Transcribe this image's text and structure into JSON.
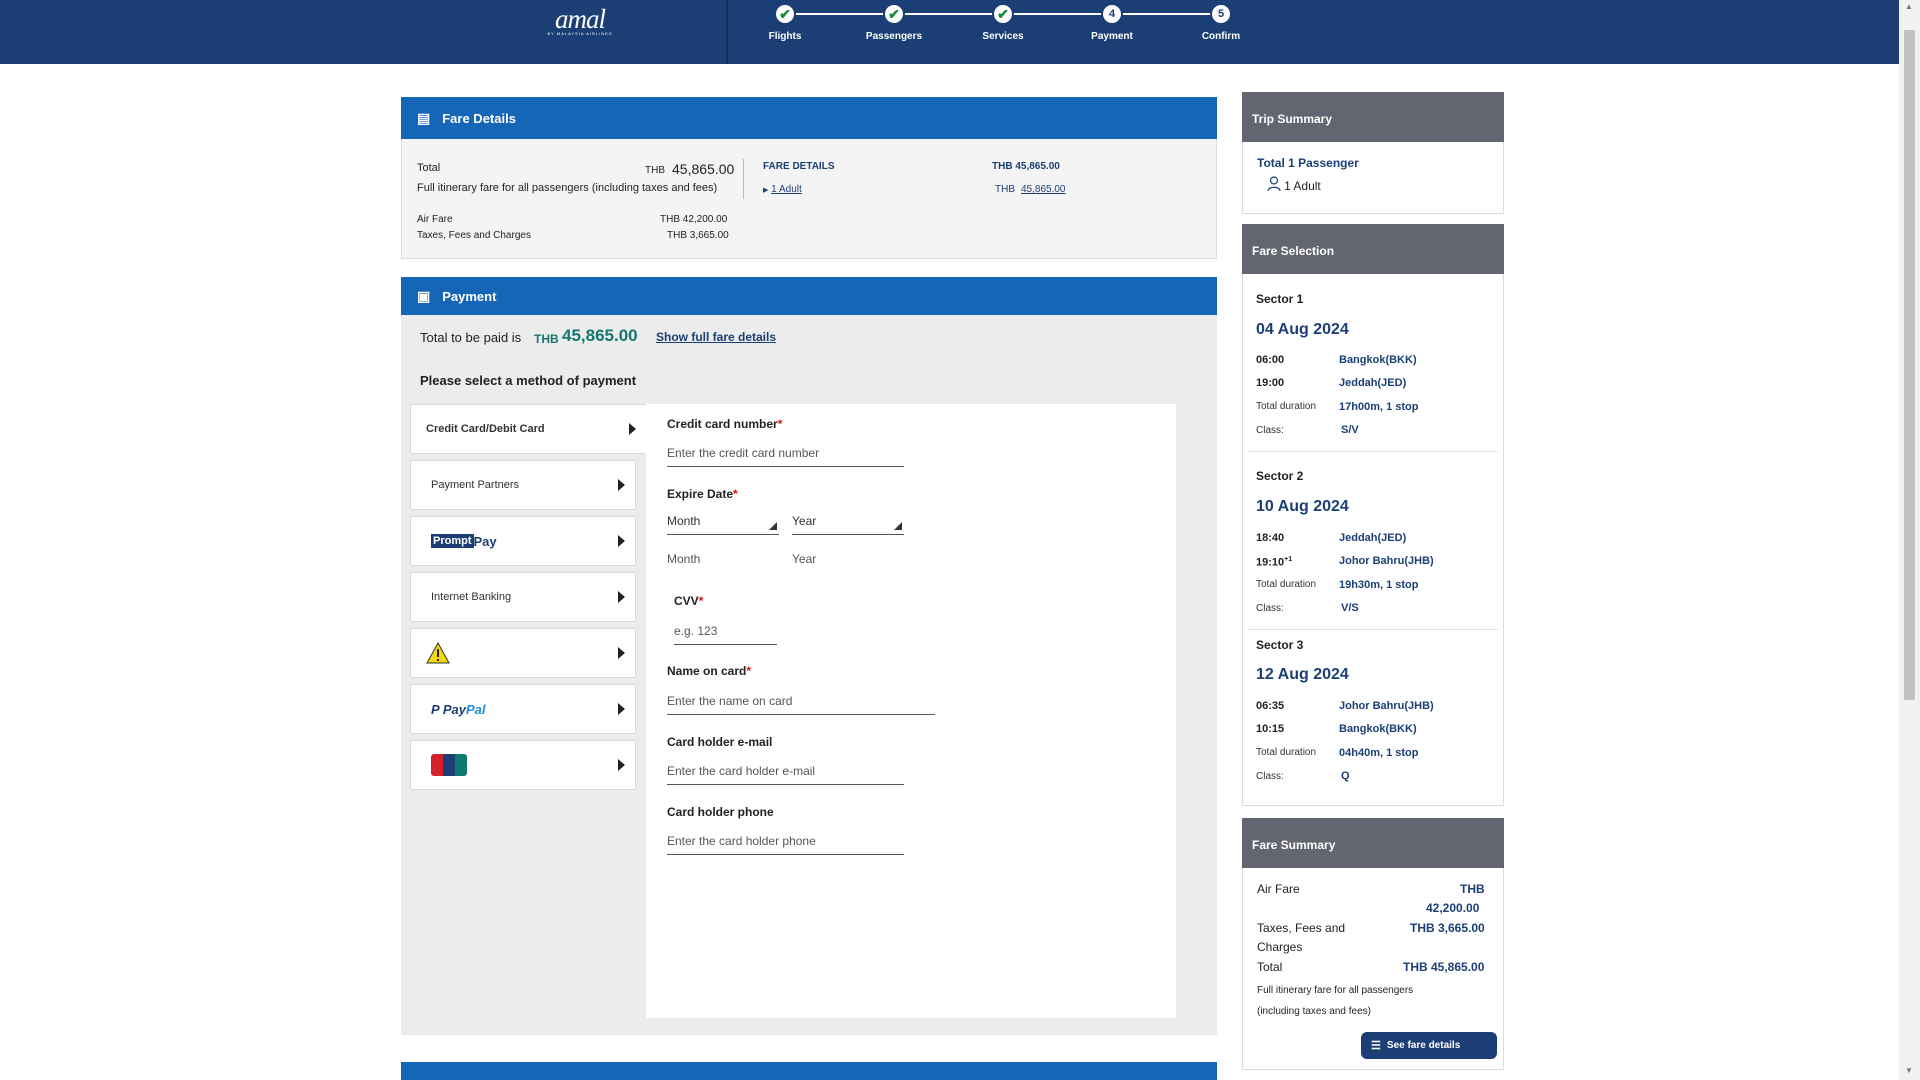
{
  "brand": {
    "logo_text": "amal",
    "logo_sub": "BY MALAYSIA AIRLINES"
  },
  "steps": [
    {
      "label": "Flights",
      "state": "done",
      "mark": "✔"
    },
    {
      "label": "Passengers",
      "state": "done",
      "mark": "✔"
    },
    {
      "label": "Services",
      "state": "done",
      "mark": "✔"
    },
    {
      "label": "Payment",
      "state": "current",
      "mark": "4"
    },
    {
      "label": "Confirm",
      "state": "pending",
      "mark": "5"
    }
  ],
  "fare_details": {
    "title": "Fare Details",
    "total_label": "Total",
    "total_currency": "THB",
    "total_value": "45,865.00",
    "total_note": "Full itinerary fare for all passengers (including taxes and fees)",
    "airfare_label": "Air Fare",
    "airfare_value": "THB  42,200.00",
    "taxes_label": "Taxes, Fees and Charges",
    "taxes_value": "THB  3,665.00",
    "col_header": "FARE DETAILS",
    "col_header_value": "THB  45,865.00",
    "adult_link": "1 Adult",
    "adult_currency": "THB",
    "adult_value": "45,865.00"
  },
  "payment": {
    "title": "Payment",
    "total_to_pay_label": "Total to be paid is",
    "currency": "THB",
    "amount": "45,865.00",
    "show_full_link": "Show full fare details",
    "select_method_label": "Please select a method of payment",
    "methods": [
      {
        "label": "Credit Card/Debit Card",
        "active": true
      },
      {
        "label": "Payment Partners"
      },
      {
        "label": "PromptPay",
        "logo": "promptpay-logo"
      },
      {
        "label": "Internet Banking"
      },
      {
        "label": "",
        "logo": "warning-icon"
      },
      {
        "label": "PayPal",
        "logo": "paypal-logo"
      },
      {
        "label": "UnionPay",
        "logo": "unionpay-logo"
      }
    ],
    "form": {
      "card_number_label": "Credit card number",
      "card_number_placeholder": "Enter the credit card number",
      "expire_label": "Expire Date",
      "month_select": "Month",
      "year_select": "Year",
      "month_hint": "Month",
      "year_hint": "Year",
      "cvv_label": "CVV",
      "cvv_placeholder": "e.g. 123",
      "name_label": "Name on card",
      "name_placeholder": "Enter the name on card",
      "email_label": "Card holder e-mail",
      "email_placeholder": "Enter the card holder e-mail",
      "phone_label": "Card holder phone",
      "phone_placeholder": "Enter the card holder phone",
      "required_mark": "*"
    }
  },
  "trip_summary": {
    "title": "Trip Summary",
    "passengers_label": "Total 1 Passenger",
    "adult_label": "1 Adult"
  },
  "fare_selection": {
    "title": "Fare Selection",
    "duration_label": "Total duration",
    "class_label": "Class:",
    "sectors": [
      {
        "title": "Sector 1",
        "date": "04 Aug 2024",
        "dep_time": "06:00",
        "dep_place": "Bangkok(BKK)",
        "arr_time": "19:00",
        "arr_day": "",
        "arr_place": "Jeddah(JED)",
        "duration": "17h00m, 1 stop",
        "class": "S/V"
      },
      {
        "title": "Sector 2",
        "date": "10 Aug 2024",
        "dep_time": "18:40",
        "dep_place": "Jeddah(JED)",
        "arr_time": "19:10",
        "arr_day": "+1",
        "arr_place": "Johor Bahru(JHB)",
        "duration": "19h30m, 1 stop",
        "class": "V/S"
      },
      {
        "title": "Sector 3",
        "date": "12 Aug 2024",
        "dep_time": "06:35",
        "dep_place": "Johor Bahru(JHB)",
        "arr_time": "10:15",
        "arr_day": "",
        "arr_place": "Bangkok(BKK)",
        "duration": "04h40m, 1 stop",
        "class": "Q"
      }
    ]
  },
  "fare_summary": {
    "title": "Fare Summary",
    "airfare_label": "Air Fare",
    "airfare_currency": "THB",
    "airfare_value": "42,200.00",
    "taxes_label_1": "Taxes, Fees and",
    "taxes_label_2": "Charges",
    "taxes_value": "THB  3,665.00",
    "total_label": "Total",
    "total_value": "THB  45,865.00",
    "note_1": "Full itinerary fare for all passengers",
    "note_2": "(including taxes and fees)",
    "see_button": "See fare details"
  }
}
